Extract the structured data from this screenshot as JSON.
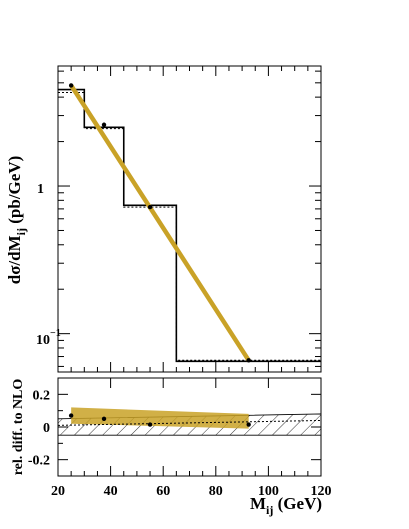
{
  "chart_data": [
    {
      "type": "line",
      "panel": "main",
      "ylabel": "dσ/dM",
      "ylabel_sub": "ij",
      "ylabel_unit": " (pb/GeV)",
      "yscale": "log",
      "xlim": [
        20,
        120
      ],
      "ylim": [
        0.055,
        6.5
      ],
      "grid": false,
      "ytick_labels": [
        "1",
        "10",
        "−1"
      ],
      "series": [
        {
          "kind": "step",
          "style": "solid",
          "color": "#000000",
          "x_edges": [
            20,
            30,
            45,
            65,
            120
          ],
          "values": [
            4.5,
            2.5,
            0.74,
            0.065
          ]
        },
        {
          "kind": "step",
          "style": "dotted",
          "color": "#000000",
          "x_edges": [
            20,
            30,
            45,
            65,
            120
          ],
          "values": [
            4.3,
            2.45,
            0.72,
            0.066
          ]
        },
        {
          "kind": "band",
          "color": "#c9a227",
          "x": [
            25,
            92.5
          ],
          "y": [
            4.8,
            0.066
          ]
        },
        {
          "kind": "points",
          "color": "#000000",
          "x": [
            25,
            37.5,
            55,
            92.5
          ],
          "y": [
            4.8,
            2.6,
            0.72,
            0.066
          ]
        }
      ]
    },
    {
      "type": "line",
      "panel": "ratio",
      "xlabel": "M",
      "xlabel_sub": "ij",
      "xlabel_unit": " (GeV)",
      "ylabel": "rel. diff. to NLO",
      "xlim": [
        20,
        120
      ],
      "ylim": [
        -0.3,
        0.3
      ],
      "xticks": [
        20,
        40,
        60,
        80,
        100,
        120
      ],
      "xtick_labels": [
        "20",
        "40",
        "60",
        "80",
        "100",
        "120"
      ],
      "yticks": [
        0.2,
        0,
        -0.2
      ],
      "ytick_labels": [
        "0.2",
        "0",
        "-0.2"
      ],
      "series": [
        {
          "kind": "hatched-band",
          "color": "#000000",
          "x": [
            20,
            120
          ],
          "upper": [
            0.05,
            0.08
          ],
          "lower": [
            -0.05,
            -0.05
          ]
        },
        {
          "kind": "band",
          "color": "#c9a227",
          "x": [
            25,
            92.5
          ],
          "upper": [
            0.12,
            0.08
          ],
          "lower": [
            0.02,
            -0.01
          ]
        },
        {
          "kind": "line",
          "style": "dotted",
          "color": "#000000",
          "x": [
            20,
            120
          ],
          "y": [
            0.01,
            0.04
          ]
        },
        {
          "kind": "points",
          "color": "#000000",
          "x": [
            25,
            37.5,
            55,
            92.5
          ],
          "y": [
            0.07,
            0.05,
            0.015,
            0.015
          ]
        }
      ]
    }
  ]
}
